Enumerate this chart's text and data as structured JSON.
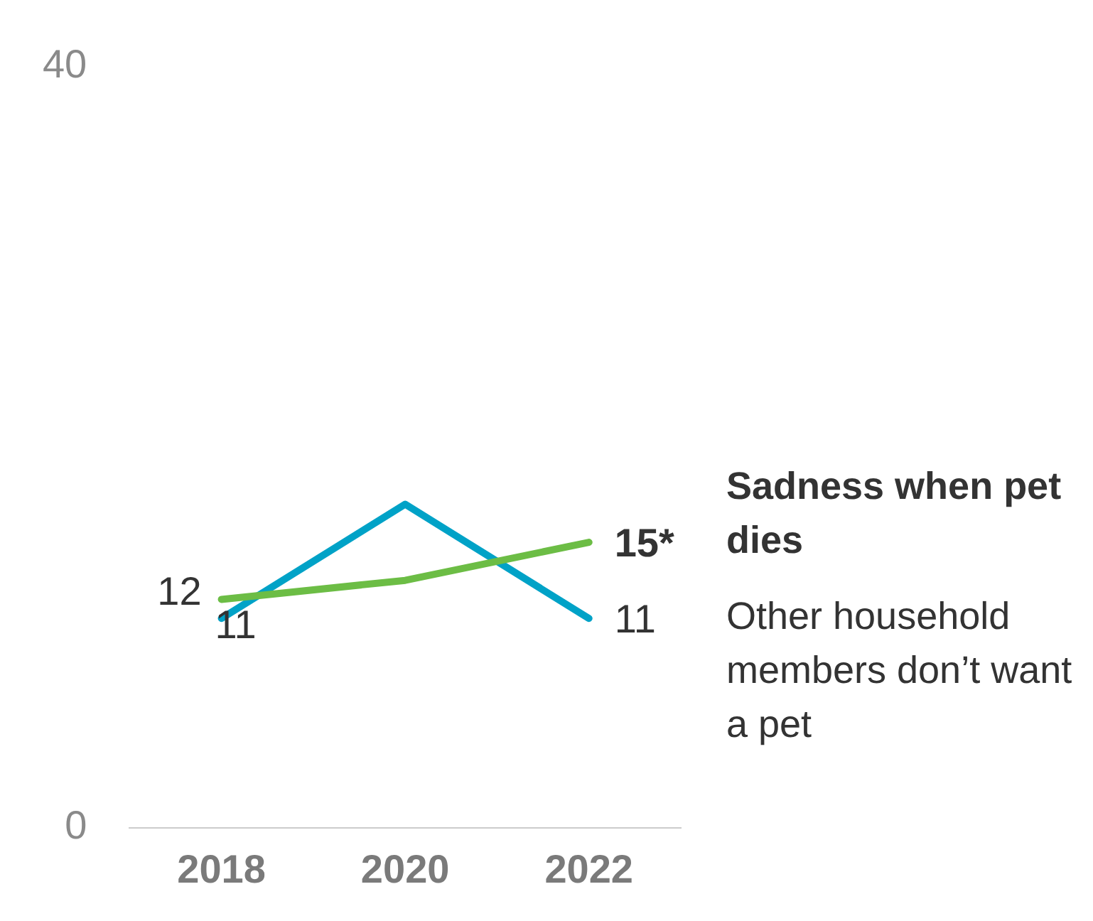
{
  "chart_data": {
    "type": "line",
    "categories": [
      "2018",
      "2020",
      "2022"
    ],
    "series": [
      {
        "name": "Sadness when pet dies",
        "color": "#6cbd45",
        "values": [
          12,
          13,
          15
        ],
        "value_labels": [
          "12",
          null,
          "15*"
        ]
      },
      {
        "name": "Other household members don’t want a pet",
        "color": "#00a2c7",
        "values": [
          11,
          17,
          11
        ],
        "value_labels": [
          "11",
          null,
          "11"
        ]
      }
    ],
    "ylim": [
      0,
      40
    ],
    "yticks": [
      0,
      40
    ],
    "grid": false,
    "legend": false,
    "marker": "none",
    "line_style": "solid"
  }
}
